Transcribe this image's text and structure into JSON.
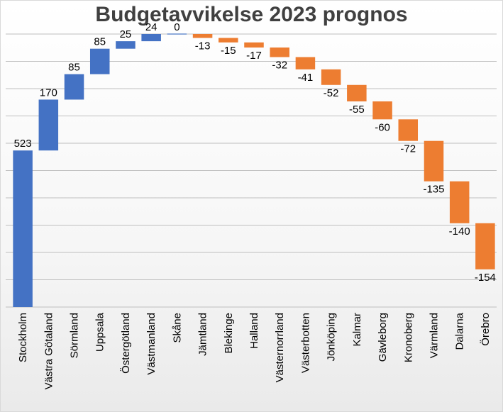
{
  "chart_data": {
    "type": "bar",
    "subtype": "waterfall",
    "title": "Budgetavvikelse 2023 prognos",
    "xlabel": "",
    "ylabel": "",
    "categories": [
      "Stockholm",
      "Västra Götaland",
      "Sörmland",
      "Uppsala",
      "Östergötland",
      "Västmanland",
      "Skåne",
      "Jämtland",
      "Blekinge",
      "Halland",
      "Västernorrland",
      "Västerbotten",
      "Jönköping",
      "Kalmar",
      "Gävleborg",
      "Kronoberg",
      "Värmland",
      "Dalarna",
      "Örebro"
    ],
    "values": [
      523,
      170,
      85,
      85,
      25,
      24,
      0,
      -13,
      -15,
      -17,
      -32,
      -41,
      -52,
      -55,
      -60,
      -72,
      -135,
      -140,
      -154
    ],
    "value_labels": [
      "523",
      "170",
      "85",
      "85",
      "25",
      "24",
      "0",
      "-13",
      "-15",
      "-17",
      "-32",
      "-41",
      "-52",
      "-55",
      "-60",
      "-72",
      "-135",
      "-140",
      "-154"
    ],
    "ylim": [
      0,
      912
    ],
    "grid": true,
    "legend": "none",
    "colors": {
      "increase": "#4472C4",
      "decrease": "#ED7D31",
      "gridline": "#bfbfbf",
      "axis": "#bfbfbf"
    }
  }
}
